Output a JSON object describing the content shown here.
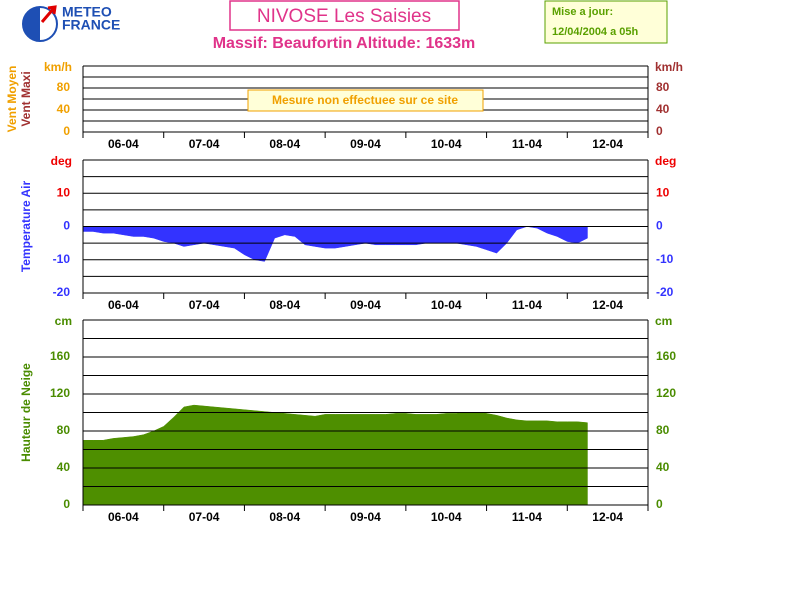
{
  "header": {
    "logo": [
      "METEO",
      "FRANCE"
    ],
    "title": "NIVOSE Les Saisies",
    "subtitle": "Massif: Beaufortin Altitude: 1633m",
    "update": [
      "Mise a jour:",
      "12/04/2004 a 05h"
    ]
  },
  "chart_data": [
    {
      "type": "line",
      "ylabel": [
        {
          "text": "Vent Moyen",
          "color": "#f0a000"
        },
        {
          "text": "Vent Maxi",
          "color": "#a03030"
        }
      ],
      "yunit": "km/h",
      "unit_color_left": "#f0a000",
      "unit_color_right": "#a03030",
      "ylim": [
        0,
        120
      ],
      "yticks": [
        0,
        40,
        80
      ],
      "ygrid": [
        0,
        20,
        40,
        60,
        80,
        100,
        120
      ],
      "tick_colors_left": [
        "#f0a000",
        "#f0a000",
        "#f0a000"
      ],
      "tick_colors_right": [
        "#a03030",
        "#a03030",
        "#a03030"
      ],
      "xlim": [
        0,
        168
      ],
      "xminor": [
        0,
        24,
        48,
        72,
        96,
        120,
        144,
        168
      ],
      "xticks": [
        {
          "value": 12,
          "label": "06-04"
        },
        {
          "value": 36,
          "label": "07-04"
        },
        {
          "value": 60,
          "label": "08-04"
        },
        {
          "value": 84,
          "label": "09-04"
        },
        {
          "value": 108,
          "label": "10-04"
        },
        {
          "value": 132,
          "label": "11-04"
        },
        {
          "value": 156,
          "label": "12-04"
        }
      ],
      "annotation": "Mesure non effectuee sur ce site"
    },
    {
      "type": "area",
      "ylabel": [
        {
          "text": "Temperature Air",
          "color": "#3333ff"
        }
      ],
      "yunit": "deg",
      "unit_color_left": "#ee0000",
      "unit_color_right": "#ee0000",
      "ylim": [
        -20,
        20
      ],
      "yticks": [
        -20,
        -10,
        0,
        10
      ],
      "ygrid": [
        -20,
        -15,
        -10,
        -5,
        0,
        5,
        10,
        15,
        20
      ],
      "tick_colors_left": [
        "#3333ff",
        "#3333ff",
        "#3333ff",
        "#ee0000"
      ],
      "tick_colors_right": [
        "#3333ff",
        "#3333ff",
        "#3333ff",
        "#ee0000"
      ],
      "xlim": [
        0,
        168
      ],
      "xminor": [
        0,
        24,
        48,
        72,
        96,
        120,
        144,
        168
      ],
      "xticks": [
        {
          "value": 12,
          "label": "06-04"
        },
        {
          "value": 36,
          "label": "07-04"
        },
        {
          "value": 60,
          "label": "08-04"
        },
        {
          "value": 84,
          "label": "09-04"
        },
        {
          "value": 108,
          "label": "10-04"
        },
        {
          "value": 132,
          "label": "11-04"
        },
        {
          "value": 156,
          "label": "12-04"
        }
      ],
      "x": [
        0,
        3,
        6,
        9,
        12,
        15,
        18,
        21,
        24,
        27,
        30,
        33,
        36,
        39,
        42,
        45,
        48,
        51,
        54,
        57,
        60,
        63,
        66,
        69,
        72,
        75,
        78,
        81,
        84,
        87,
        90,
        93,
        96,
        99,
        102,
        105,
        108,
        111,
        114,
        117,
        120,
        123,
        126,
        129,
        132,
        135,
        138,
        141,
        144,
        147,
        150
      ],
      "series": [
        {
          "color": "#3333ff",
          "values": [
            -1.5,
            -1.5,
            -2,
            -2,
            -2.5,
            -3,
            -3,
            -3.5,
            -4.5,
            -5,
            -6,
            -5.5,
            -5,
            -5.5,
            -6,
            -6.5,
            -8.5,
            -10,
            -10.5,
            -3.5,
            -2.5,
            -3,
            -5.5,
            -6,
            -6.5,
            -6.5,
            -6,
            -5.5,
            -5,
            -5.5,
            -5.5,
            -5.5,
            -5.5,
            -5.5,
            -5,
            -5,
            -5,
            -5,
            -5.5,
            -6,
            -7,
            -8,
            -5,
            -1,
            0,
            -0.5,
            -2,
            -3,
            -4.5,
            -5,
            -3.5
          ]
        }
      ]
    },
    {
      "type": "area",
      "ylabel": [
        {
          "text": "Hauteur de Neige",
          "color": "#4a8c00"
        }
      ],
      "yunit": "cm",
      "unit_color_left": "#4a8c00",
      "unit_color_right": "#4a8c00",
      "ylim": [
        0,
        200
      ],
      "yticks": [
        0,
        40,
        80,
        120,
        160
      ],
      "ygrid": [
        0,
        20,
        40,
        60,
        80,
        100,
        120,
        140,
        160,
        180,
        200
      ],
      "tick_colors_left": [
        "#4a8c00",
        "#4a8c00",
        "#4a8c00",
        "#4a8c00",
        "#4a8c00"
      ],
      "tick_colors_right": [
        "#4a8c00",
        "#4a8c00",
        "#4a8c00",
        "#4a8c00",
        "#4a8c00"
      ],
      "xlim": [
        0,
        168
      ],
      "xminor": [
        0,
        24,
        48,
        72,
        96,
        120,
        144,
        168
      ],
      "xticks": [
        {
          "value": 12,
          "label": "06-04"
        },
        {
          "value": 36,
          "label": "07-04"
        },
        {
          "value": 60,
          "label": "08-04"
        },
        {
          "value": 84,
          "label": "09-04"
        },
        {
          "value": 108,
          "label": "10-04"
        },
        {
          "value": 132,
          "label": "11-04"
        },
        {
          "value": 156,
          "label": "12-04"
        }
      ],
      "x": [
        0,
        3,
        6,
        9,
        12,
        15,
        18,
        21,
        24,
        27,
        30,
        33,
        36,
        39,
        42,
        45,
        48,
        51,
        54,
        57,
        60,
        63,
        66,
        69,
        72,
        75,
        78,
        81,
        84,
        87,
        90,
        93,
        96,
        99,
        102,
        105,
        108,
        111,
        114,
        117,
        120,
        123,
        126,
        129,
        132,
        135,
        138,
        141,
        144,
        147,
        150
      ],
      "series": [
        {
          "color": "#4e8f00",
          "values": [
            70,
            70,
            70,
            72,
            73,
            74,
            76,
            80,
            85,
            95,
            106,
            108,
            107,
            106,
            105,
            104,
            103,
            102,
            101,
            100,
            99,
            98,
            97,
            96,
            98,
            98,
            98,
            98,
            98,
            98,
            98,
            99,
            99,
            98,
            98,
            98,
            99,
            99,
            100,
            100,
            99,
            97,
            94,
            92,
            91,
            91,
            91,
            90,
            90,
            90,
            89
          ]
        }
      ]
    }
  ]
}
